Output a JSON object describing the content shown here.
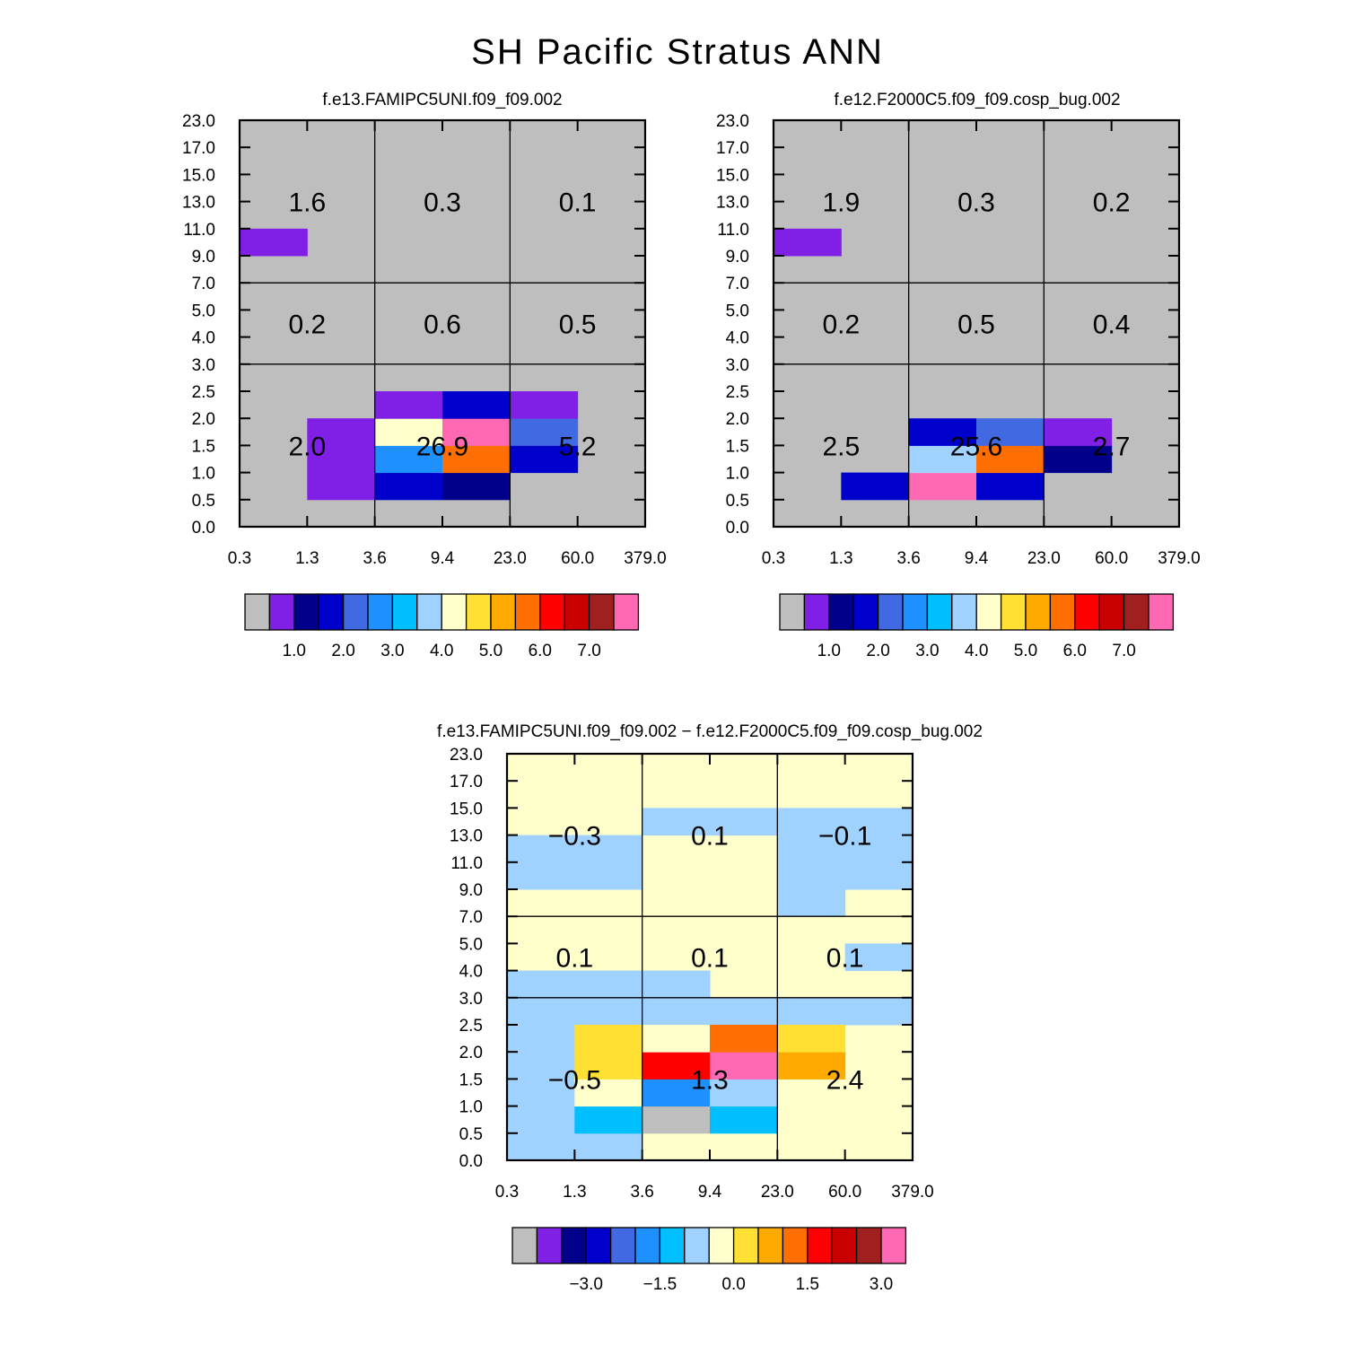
{
  "figure": {
    "title": "SH Pacific Stratus ANN"
  },
  "palette": [
    "#bebebe",
    "#8020e6",
    "#00008b",
    "#0000cd",
    "#4169e1",
    "#1e90ff",
    "#00bfff",
    "#a0d2ff",
    "#ffffcc",
    "#ffe033",
    "#ffaa00",
    "#ff6e00",
    "#ff0000",
    "#c80000",
    "#a02020",
    "#ff69b4"
  ],
  "chart_data": [
    {
      "type": "heatmap",
      "title": "f.e13.FAMIPC5UNI.f09_f09.002",
      "x_tick_labels": [
        "0.3",
        "1.3",
        "3.6",
        "9.4",
        "23.0",
        "60.0",
        "379.0"
      ],
      "y_tick_labels": [
        "0.0",
        "0.5",
        "1.0",
        "1.5",
        "2.0",
        "2.5",
        "3.0",
        "4.0",
        "5.0",
        "7.0",
        "9.0",
        "11.0",
        "13.0",
        "15.0",
        "17.0",
        "23.0"
      ],
      "x_dividers": [
        2,
        4
      ],
      "y_dividers": [
        6,
        9
      ],
      "region_values": [
        {
          "label": "1.6",
          "col": 1,
          "row": 12
        },
        {
          "label": "0.3",
          "col": 3,
          "row": 12
        },
        {
          "label": "0.1",
          "col": 5,
          "row": 12
        },
        {
          "label": "0.2",
          "col": 1,
          "row": 7.5
        },
        {
          "label": "0.6",
          "col": 3,
          "row": 7.5
        },
        {
          "label": "0.5",
          "col": 5,
          "row": 7.5
        },
        {
          "label": "2.0",
          "col": 1,
          "row": 3
        },
        {
          "label": "26.9",
          "col": 3,
          "row": 3
        },
        {
          "label": "5.2",
          "col": 5,
          "row": 3
        }
      ],
      "default_color_index": 0,
      "colored_cells": [
        {
          "col": 0,
          "row": 10,
          "color_index": 1
        },
        {
          "col": 1,
          "row": 1,
          "color_index": 1
        },
        {
          "col": 1,
          "row": 2,
          "color_index": 1
        },
        {
          "col": 1,
          "row": 3,
          "color_index": 1
        },
        {
          "col": 2,
          "row": 1,
          "color_index": 3
        },
        {
          "col": 2,
          "row": 2,
          "color_index": 5
        },
        {
          "col": 2,
          "row": 3,
          "color_index": 8
        },
        {
          "col": 2,
          "row": 4,
          "color_index": 1
        },
        {
          "col": 3,
          "row": 1,
          "color_index": 2
        },
        {
          "col": 3,
          "row": 2,
          "color_index": 11
        },
        {
          "col": 3,
          "row": 3,
          "color_index": 15
        },
        {
          "col": 3,
          "row": 4,
          "color_index": 3
        },
        {
          "col": 4,
          "row": 2,
          "color_index": 3
        },
        {
          "col": 4,
          "row": 3,
          "color_index": 4
        },
        {
          "col": 4,
          "row": 4,
          "color_index": 1
        }
      ],
      "colorbar": {
        "labels": [
          "1.0",
          "2.0",
          "3.0",
          "4.0",
          "5.0",
          "6.0",
          "7.0"
        ],
        "label_after_box": [
          1,
          3,
          5,
          7,
          9,
          11,
          13
        ]
      }
    },
    {
      "type": "heatmap",
      "title": "f.e12.F2000C5.f09_f09.cosp_bug.002",
      "x_tick_labels": [
        "0.3",
        "1.3",
        "3.6",
        "9.4",
        "23.0",
        "60.0",
        "379.0"
      ],
      "y_tick_labels": [
        "0.0",
        "0.5",
        "1.0",
        "1.5",
        "2.0",
        "2.5",
        "3.0",
        "4.0",
        "5.0",
        "7.0",
        "9.0",
        "11.0",
        "13.0",
        "15.0",
        "17.0",
        "23.0"
      ],
      "x_dividers": [
        2,
        4
      ],
      "y_dividers": [
        6,
        9
      ],
      "region_values": [
        {
          "label": "1.9",
          "col": 1,
          "row": 12
        },
        {
          "label": "0.3",
          "col": 3,
          "row": 12
        },
        {
          "label": "0.2",
          "col": 5,
          "row": 12
        },
        {
          "label": "0.2",
          "col": 1,
          "row": 7.5
        },
        {
          "label": "0.5",
          "col": 3,
          "row": 7.5
        },
        {
          "label": "0.4",
          "col": 5,
          "row": 7.5
        },
        {
          "label": "2.5",
          "col": 1,
          "row": 3
        },
        {
          "label": "25.6",
          "col": 3,
          "row": 3
        },
        {
          "label": "2.7",
          "col": 5,
          "row": 3
        }
      ],
      "default_color_index": 0,
      "colored_cells": [
        {
          "col": 0,
          "row": 10,
          "color_index": 1
        },
        {
          "col": 1,
          "row": 1,
          "color_index": 3
        },
        {
          "col": 2,
          "row": 1,
          "color_index": 15
        },
        {
          "col": 2,
          "row": 2,
          "color_index": 7
        },
        {
          "col": 2,
          "row": 3,
          "color_index": 3
        },
        {
          "col": 3,
          "row": 1,
          "color_index": 3
        },
        {
          "col": 3,
          "row": 2,
          "color_index": 11
        },
        {
          "col": 3,
          "row": 3,
          "color_index": 4
        },
        {
          "col": 4,
          "row": 2,
          "color_index": 2
        },
        {
          "col": 4,
          "row": 3,
          "color_index": 1
        }
      ],
      "colorbar": {
        "labels": [
          "1.0",
          "2.0",
          "3.0",
          "4.0",
          "5.0",
          "6.0",
          "7.0"
        ],
        "label_after_box": [
          1,
          3,
          5,
          7,
          9,
          11,
          13
        ]
      }
    },
    {
      "type": "heatmap",
      "title": "f.e13.FAMIPC5UNI.f09_f09.002 − f.e12.F2000C5.f09_f09.cosp_bug.002",
      "x_tick_labels": [
        "0.3",
        "1.3",
        "3.6",
        "9.4",
        "23.0",
        "60.0",
        "379.0"
      ],
      "y_tick_labels": [
        "0.0",
        "0.5",
        "1.0",
        "1.5",
        "2.0",
        "2.5",
        "3.0",
        "4.0",
        "5.0",
        "7.0",
        "9.0",
        "11.0",
        "13.0",
        "15.0",
        "17.0",
        "23.0"
      ],
      "x_dividers": [
        2,
        4
      ],
      "y_dividers": [
        6,
        9
      ],
      "region_values": [
        {
          "label": "−0.3",
          "col": 1,
          "row": 12
        },
        {
          "label": "0.1",
          "col": 3,
          "row": 12
        },
        {
          "label": "−0.1",
          "col": 5,
          "row": 12
        },
        {
          "label": "0.1",
          "col": 1,
          "row": 7.5
        },
        {
          "label": "0.1",
          "col": 3,
          "row": 7.5
        },
        {
          "label": "0.1",
          "col": 5,
          "row": 7.5
        },
        {
          "label": "−0.5",
          "col": 1,
          "row": 3
        },
        {
          "label": "1.3",
          "col": 3,
          "row": 3
        },
        {
          "label": "2.4",
          "col": 5,
          "row": 3
        }
      ],
      "default_color_index": 8,
      "colored_cells": [
        {
          "col": 0,
          "row": 0,
          "color_index": 7
        },
        {
          "col": 0,
          "row": 1,
          "color_index": 7
        },
        {
          "col": 0,
          "row": 2,
          "color_index": 7
        },
        {
          "col": 0,
          "row": 3,
          "color_index": 7
        },
        {
          "col": 0,
          "row": 4,
          "color_index": 7
        },
        {
          "col": 0,
          "row": 5,
          "color_index": 7
        },
        {
          "col": 1,
          "row": 0,
          "color_index": 7
        },
        {
          "col": 1,
          "row": 5,
          "color_index": 7
        },
        {
          "col": 1,
          "row": 1,
          "color_index": 6
        },
        {
          "col": 1,
          "row": 2,
          "color_index": 8
        },
        {
          "col": 1,
          "row": 3,
          "color_index": 9
        },
        {
          "col": 1,
          "row": 4,
          "color_index": 9
        },
        {
          "col": 2,
          "row": 5,
          "color_index": 7
        },
        {
          "col": 3,
          "row": 5,
          "color_index": 7
        },
        {
          "col": 4,
          "row": 5,
          "color_index": 7
        },
        {
          "col": 5,
          "row": 5,
          "color_index": 7
        },
        {
          "col": 2,
          "row": 1,
          "color_index": 0
        },
        {
          "col": 2,
          "row": 2,
          "color_index": 5
        },
        {
          "col": 2,
          "row": 3,
          "color_index": 12
        },
        {
          "col": 2,
          "row": 4,
          "color_index": 8
        },
        {
          "col": 3,
          "row": 1,
          "color_index": 6
        },
        {
          "col": 3,
          "row": 2,
          "color_index": 7
        },
        {
          "col": 3,
          "row": 3,
          "color_index": 15
        },
        {
          "col": 3,
          "row": 4,
          "color_index": 11
        },
        {
          "col": 4,
          "row": 3,
          "color_index": 10
        },
        {
          "col": 4,
          "row": 4,
          "color_index": 9
        },
        {
          "col": 0,
          "row": 6,
          "color_index": 7
        },
        {
          "col": 1,
          "row": 6,
          "color_index": 7
        },
        {
          "col": 2,
          "row": 6,
          "color_index": 7
        },
        {
          "col": 5,
          "row": 7,
          "color_index": 7
        },
        {
          "col": 0,
          "row": 10,
          "color_index": 7
        },
        {
          "col": 0,
          "row": 11,
          "color_index": 7
        },
        {
          "col": 1,
          "row": 10,
          "color_index": 7
        },
        {
          "col": 1,
          "row": 11,
          "color_index": 7
        },
        {
          "col": 2,
          "row": 12,
          "color_index": 7
        },
        {
          "col": 3,
          "row": 12,
          "color_index": 7
        },
        {
          "col": 4,
          "row": 10,
          "color_index": 7
        },
        {
          "col": 4,
          "row": 11,
          "color_index": 7
        },
        {
          "col": 4,
          "row": 12,
          "color_index": 7
        },
        {
          "col": 4,
          "row": 9,
          "color_index": 7
        },
        {
          "col": 5,
          "row": 10,
          "color_index": 7
        },
        {
          "col": 5,
          "row": 11,
          "color_index": 7
        },
        {
          "col": 5,
          "row": 12,
          "color_index": 7
        }
      ],
      "colorbar": {
        "labels": [
          "−3.0",
          "−1.5",
          "0.0",
          "1.5",
          "3.0"
        ],
        "label_after_box": [
          2,
          5,
          8,
          11,
          14
        ]
      }
    }
  ]
}
